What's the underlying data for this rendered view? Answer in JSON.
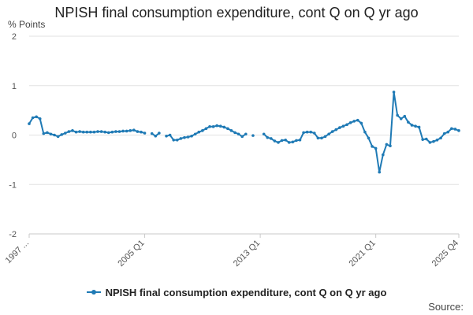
{
  "chart_data": {
    "type": "line",
    "title": "NPISH final consumption expenditure, cont Q on Q yr ago",
    "ylabel": "% Points",
    "ylim": [
      -2,
      2
    ],
    "yticks": [
      2,
      1,
      0,
      -1,
      -2
    ],
    "xtick_labels": [
      "1997 ...",
      "2005 Q1",
      "2013 Q1",
      "2021 Q1",
      "2025 Q4"
    ],
    "grid": true,
    "legend": "bottom",
    "source": "Source:",
    "series": [
      {
        "name": "NPISH final consumption expenditure, cont Q on Q yr ago",
        "color": "#1f7ab5",
        "values": [
          0.23,
          0.35,
          0.37,
          0.33,
          0.03,
          0.05,
          0.02,
          0.0,
          -0.03,
          0.01,
          0.04,
          0.07,
          0.09,
          0.06,
          0.07,
          0.06,
          0.06,
          0.06,
          0.06,
          0.07,
          0.07,
          0.06,
          0.05,
          0.06,
          0.07,
          0.07,
          0.08,
          0.08,
          0.09,
          0.1,
          0.07,
          0.06,
          0.04,
          null,
          0.03,
          -0.02,
          0.04,
          null,
          -0.02,
          0.0,
          -0.1,
          -0.1,
          -0.07,
          -0.05,
          -0.04,
          -0.02,
          0.02,
          0.06,
          0.09,
          0.13,
          0.17,
          0.17,
          0.19,
          0.18,
          0.16,
          0.13,
          0.09,
          0.05,
          0.02,
          -0.03,
          0.02,
          null,
          -0.01,
          null,
          null,
          0.02,
          -0.05,
          -0.07,
          -0.12,
          -0.15,
          -0.11,
          -0.1,
          -0.15,
          -0.14,
          -0.11,
          -0.1,
          0.05,
          0.06,
          0.06,
          0.04,
          -0.06,
          -0.06,
          -0.03,
          0.02,
          0.07,
          0.11,
          0.15,
          0.18,
          0.21,
          0.25,
          0.28,
          0.3,
          0.24,
          0.06,
          -0.06,
          -0.23,
          -0.27,
          -0.75,
          -0.4,
          -0.19,
          -0.22,
          0.87,
          0.4,
          0.33,
          0.38,
          0.26,
          0.2,
          0.18,
          0.16,
          -0.09,
          -0.08,
          -0.15,
          -0.13,
          -0.1,
          -0.06,
          0.03,
          0.06,
          0.13,
          0.12,
          0.09
        ]
      }
    ]
  }
}
